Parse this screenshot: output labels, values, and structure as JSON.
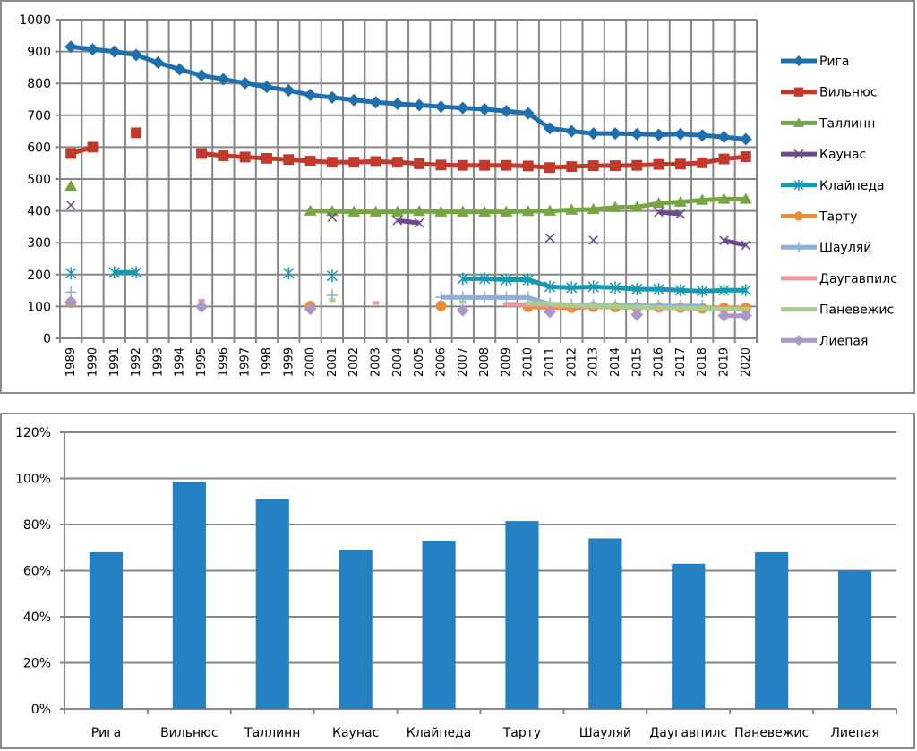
{
  "chart_data": [
    {
      "type": "line",
      "title": "",
      "xlabel": "",
      "ylabel": "",
      "ylim": [
        0,
        1000
      ],
      "yticks": [
        "0",
        "100",
        "200",
        "300",
        "400",
        "500",
        "600",
        "700",
        "800",
        "900",
        "1000"
      ],
      "grid": true,
      "legend_position": "right",
      "x": [
        "1989",
        "1990",
        "1991",
        "1992",
        "1993",
        "1994",
        "1995",
        "1996",
        "1997",
        "1998",
        "1999",
        "2000",
        "2001",
        "2002",
        "2003",
        "2004",
        "2005",
        "2006",
        "2007",
        "2008",
        "2009",
        "2010",
        "2011",
        "2012",
        "2013",
        "2014",
        "2015",
        "2016",
        "2017",
        "2018",
        "2019",
        "2020"
      ],
      "series": [
        {
          "name": "Рига",
          "color": "#1f6fae",
          "marker": "diamond",
          "values": [
            915,
            907,
            900,
            889,
            865,
            844,
            825,
            813,
            801,
            789,
            778,
            764,
            756,
            748,
            741,
            736,
            732,
            727,
            723,
            719,
            713,
            706,
            659,
            650,
            643,
            643,
            641,
            639,
            641,
            637,
            632,
            625
          ]
        },
        {
          "name": "Вильнюс",
          "color": "#c0392b",
          "marker": "square",
          "values": [
            580,
            600,
            null,
            645,
            null,
            null,
            580,
            573,
            569,
            565,
            561,
            556,
            553,
            553,
            555,
            553,
            548,
            544,
            543,
            543,
            543,
            541,
            536,
            539,
            542,
            542,
            543,
            546,
            547,
            551,
            563,
            570
          ]
        },
        {
          "name": "Таллинн",
          "color": "#77a543",
          "marker": "triangle",
          "values": [
            478,
            null,
            null,
            null,
            null,
            null,
            null,
            null,
            null,
            null,
            null,
            400,
            399,
            397,
            397,
            397,
            399,
            397,
            397,
            397,
            397,
            399,
            400,
            403,
            405,
            411,
            412,
            424,
            428,
            434,
            437,
            437
          ]
        },
        {
          "name": "Каунас",
          "color": "#6a4a8c",
          "marker": "x",
          "values": [
            418,
            null,
            null,
            null,
            null,
            null,
            null,
            null,
            null,
            null,
            null,
            null,
            380,
            null,
            null,
            370,
            362,
            null,
            null,
            null,
            null,
            null,
            315,
            null,
            308,
            null,
            null,
            396,
            390,
            null,
            307,
            292
          ]
        },
        {
          "name": "Клайпеда",
          "color": "#1798b0",
          "marker": "star",
          "values": [
            204,
            null,
            207,
            207,
            null,
            null,
            null,
            null,
            null,
            null,
            204,
            null,
            196,
            null,
            null,
            null,
            null,
            null,
            187,
            187,
            184,
            184,
            162,
            159,
            162,
            159,
            154,
            154,
            151,
            148,
            151,
            151
          ]
        },
        {
          "name": "Тарту",
          "color": "#f28a30",
          "marker": "circle",
          "values": [
            112,
            null,
            null,
            null,
            null,
            null,
            null,
            null,
            null,
            null,
            null,
            101,
            null,
            null,
            null,
            null,
            null,
            102,
            null,
            null,
            null,
            99,
            97,
            96,
            99,
            98,
            97,
            97,
            96,
            94,
            95,
            95
          ]
        },
        {
          "name": "Шауляй",
          "color": "#8eaedc",
          "marker": "plus",
          "values": [
            145,
            null,
            null,
            null,
            null,
            null,
            null,
            null,
            null,
            null,
            null,
            null,
            135,
            null,
            null,
            null,
            null,
            129,
            128,
            128,
            128,
            128,
            107,
            105,
            104,
            103,
            104,
            101,
            102,
            101,
            null,
            null
          ]
        },
        {
          "name": "Даугавпилс",
          "color": "#e8999b",
          "marker": "dash",
          "values": [
            119,
            null,
            null,
            null,
            null,
            null,
            118,
            null,
            null,
            null,
            null,
            null,
            null,
            null,
            111,
            null,
            null,
            null,
            null,
            null,
            107,
            106,
            103,
            102,
            100,
            99,
            97,
            96,
            95,
            93,
            93,
            null
          ]
        },
        {
          "name": "Паневежис",
          "color": "#a8cd8c",
          "marker": "dash",
          "values": [
            122,
            null,
            null,
            null,
            null,
            null,
            null,
            null,
            null,
            null,
            null,
            null,
            120,
            null,
            null,
            null,
            null,
            null,
            114,
            null,
            null,
            110,
            109,
            103,
            101,
            100,
            98,
            97,
            96,
            94,
            93,
            92
          ]
        },
        {
          "name": "Лиепая",
          "color": "#ab98c9",
          "marker": "diamond",
          "values": [
            114,
            null,
            null,
            null,
            null,
            null,
            99,
            null,
            null,
            null,
            null,
            92,
            null,
            null,
            null,
            null,
            null,
            null,
            88,
            null,
            null,
            null,
            83,
            null,
            null,
            null,
            74,
            null,
            null,
            null,
            71,
            71
          ]
        }
      ]
    },
    {
      "type": "bar",
      "title": "",
      "xlabel": "",
      "ylabel": "",
      "ylim": [
        0,
        1.2
      ],
      "yticks": [
        "0%",
        "20%",
        "40%",
        "60%",
        "80%",
        "100%",
        "120%"
      ],
      "grid": true,
      "bar_color": "#2580c1",
      "categories": [
        "Рига",
        "Вильнюс",
        "Таллинн",
        "Каунас",
        "Клайпеда",
        "Тарту",
        "Шауляй",
        "Даугавпилс",
        "Паневежис",
        "Лиепая"
      ],
      "values": [
        0.68,
        0.985,
        0.91,
        0.69,
        0.73,
        0.815,
        0.74,
        0.63,
        0.68,
        0.6
      ]
    }
  ]
}
